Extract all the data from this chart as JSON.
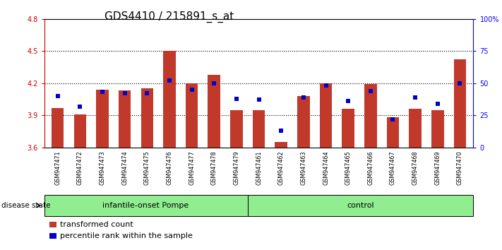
{
  "title": "GDS4410 / 215891_s_at",
  "samples": [
    "GSM947471",
    "GSM947472",
    "GSM947473",
    "GSM947474",
    "GSM947475",
    "GSM947476",
    "GSM947477",
    "GSM947478",
    "GSM947479",
    "GSM947461",
    "GSM947462",
    "GSM947463",
    "GSM947464",
    "GSM947465",
    "GSM947466",
    "GSM947467",
    "GSM947468",
    "GSM947469",
    "GSM947470"
  ],
  "red_values": [
    3.97,
    3.91,
    4.14,
    4.13,
    4.15,
    4.5,
    4.2,
    4.28,
    3.95,
    3.95,
    3.65,
    4.08,
    4.2,
    3.96,
    4.19,
    3.88,
    3.96,
    3.95,
    4.42
  ],
  "blue_values": [
    40,
    32,
    43,
    42,
    42,
    52,
    45,
    50,
    38,
    37,
    13,
    39,
    48,
    36,
    44,
    22,
    39,
    34,
    50
  ],
  "ylim_left": [
    3.6,
    4.8
  ],
  "ylim_right": [
    0,
    100
  ],
  "yticks_left": [
    3.6,
    3.9,
    4.2,
    4.5,
    4.8
  ],
  "yticks_right": [
    0,
    25,
    50,
    75,
    100
  ],
  "ytick_labels_right": [
    "0",
    "25",
    "50",
    "75",
    "100%"
  ],
  "hlines": [
    3.9,
    4.2,
    4.5
  ],
  "bar_color": "#C0392B",
  "dot_color": "#0000CC",
  "bar_bottom": 3.6,
  "bar_width": 0.55,
  "group1_label": "infantile-onset Pompe",
  "group1_range": [
    0,
    9
  ],
  "group2_label": "control",
  "group2_range": [
    9,
    19
  ],
  "group_color": "#90EE90",
  "xtick_bg_color": "#d3d3d3",
  "disease_state_label": "disease state",
  "legend1_label": "transformed count",
  "legend2_label": "percentile rank within the sample",
  "title_fontsize": 11,
  "tick_fontsize": 7,
  "sample_fontsize": 5.8,
  "label_fontsize": 8
}
